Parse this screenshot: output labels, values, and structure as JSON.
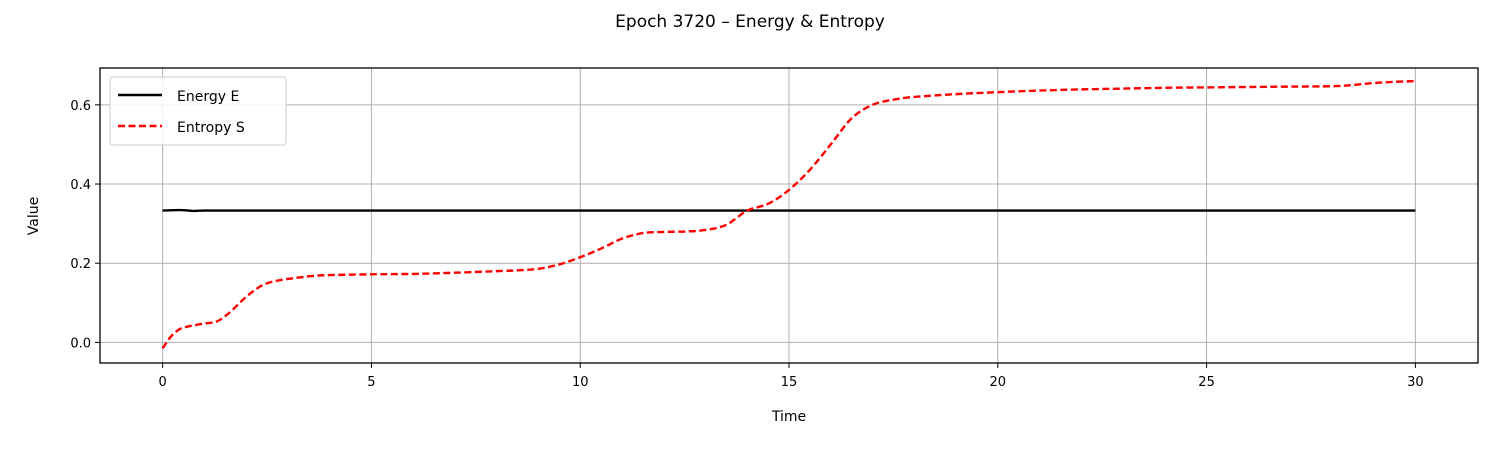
{
  "chart_data": {
    "type": "line",
    "title": "Epoch 3720 – Energy & Entropy",
    "xlabel": "Time",
    "ylabel": "Value",
    "xlim": [
      -1.5,
      31.5
    ],
    "ylim": [
      -0.052,
      0.693
    ],
    "xticks": [
      "0",
      "5",
      "10",
      "15",
      "20",
      "25",
      "30"
    ],
    "xtick_values": [
      0,
      5,
      10,
      15,
      20,
      25,
      30
    ],
    "yticks": [
      "0.0",
      "0.2",
      "0.4",
      "0.6"
    ],
    "ytick_values": [
      0.0,
      0.2,
      0.4,
      0.6
    ],
    "grid": true,
    "legend_position": "top-left",
    "series": [
      {
        "name": "Energy E",
        "color": "#000000",
        "style": "solid",
        "x": [
          0,
          0.25,
          0.5,
          0.75,
          1.0,
          2,
          5,
          10,
          15,
          20,
          25,
          30
        ],
        "y": [
          0.333,
          0.334,
          0.334,
          0.332,
          0.333,
          0.333,
          0.333,
          0.333,
          0.333,
          0.333,
          0.333,
          0.333
        ]
      },
      {
        "name": "Entropy S",
        "color": "#ff0000",
        "style": "dashed",
        "x": [
          0,
          0.2,
          0.4,
          0.6,
          0.8,
          1.0,
          1.3,
          1.6,
          2.0,
          2.4,
          2.8,
          3.2,
          3.6,
          4,
          5,
          6,
          7,
          8,
          8.5,
          9,
          9.5,
          10,
          10.5,
          11,
          11.5,
          12,
          12.5,
          13,
          13.5,
          14,
          14.5,
          15,
          15.5,
          16,
          16.5,
          17,
          17.5,
          18,
          19,
          20,
          21,
          22,
          23,
          24,
          25,
          26,
          27,
          28,
          28.5,
          29,
          29.5,
          30
        ],
        "y": [
          -0.015,
          0.015,
          0.033,
          0.04,
          0.044,
          0.048,
          0.053,
          0.075,
          0.115,
          0.145,
          0.157,
          0.163,
          0.168,
          0.17,
          0.172,
          0.173,
          0.176,
          0.18,
          0.182,
          0.186,
          0.197,
          0.215,
          0.237,
          0.262,
          0.276,
          0.279,
          0.28,
          0.284,
          0.297,
          0.333,
          0.35,
          0.385,
          0.436,
          0.5,
          0.566,
          0.6,
          0.613,
          0.62,
          0.627,
          0.632,
          0.636,
          0.639,
          0.641,
          0.643,
          0.644,
          0.645,
          0.646,
          0.647,
          0.65,
          0.655,
          0.658,
          0.66
        ]
      }
    ]
  }
}
